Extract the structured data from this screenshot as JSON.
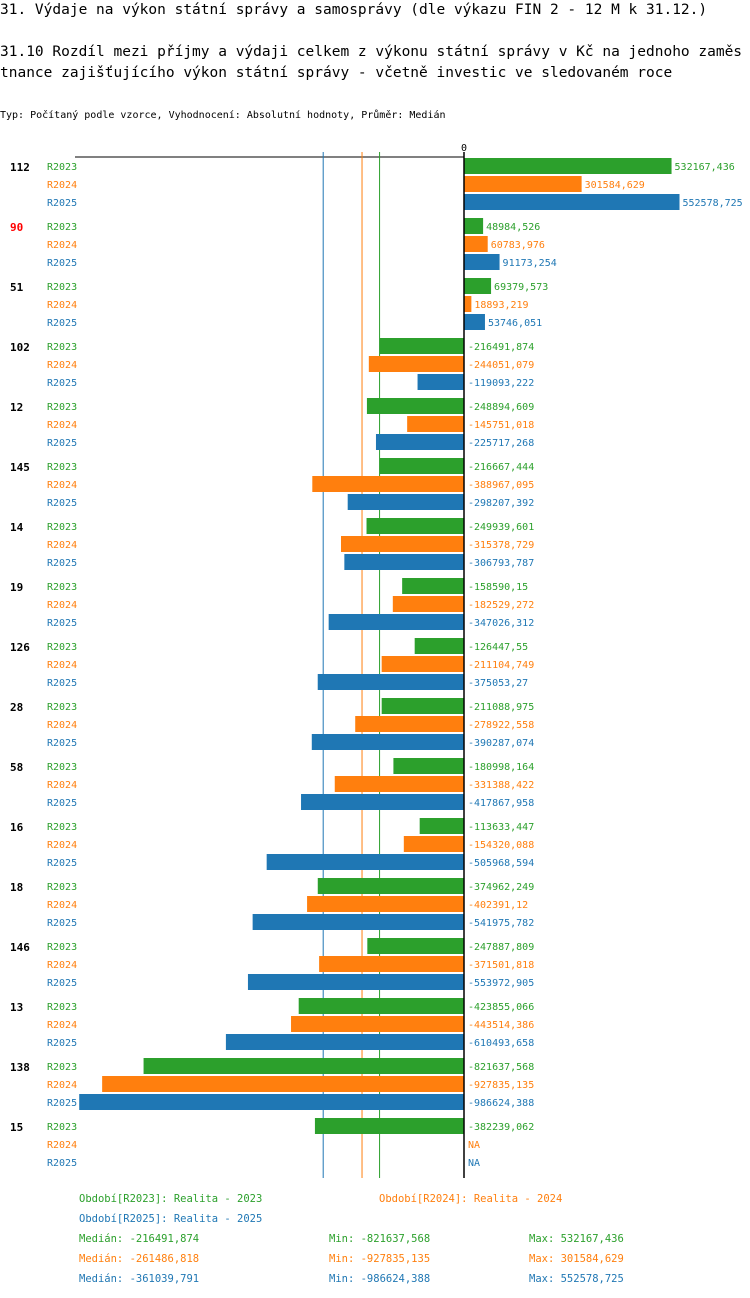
{
  "title": "31. Výdaje na výkon státní správy a samosprávy (dle výkazu FIN 2 - 12 M k 31.12.)",
  "subtitle": "31.10 Rozdíl mezi  příjmy a výdaji celkem z výkonu státní správy v Kč na jednoho zaměstnance zajišťujícího výkon státní správy - včetně investic ve sledovaném roce",
  "info": "Typ: Počítaný podle vzorce, Vyhodnocení: Absolutní hodnoty, Průměr: Medián",
  "chart_data": {
    "type": "bar",
    "orientation": "horizontal",
    "zero_label": "0",
    "series_names": [
      "R2023",
      "R2024",
      "R2025"
    ],
    "colors": [
      "#2ca02c",
      "#ff7f0e",
      "#1f77b4"
    ],
    "highlight_color": "#ff0000",
    "categories": [
      "112",
      "90",
      "51",
      "102",
      "12",
      "145",
      "14",
      "19",
      "126",
      "28",
      "58",
      "16",
      "18",
      "146",
      "13",
      "138",
      "15"
    ],
    "highlighted": [
      "90"
    ],
    "values": [
      [
        "532167,436",
        "301584,629",
        "552578,725"
      ],
      [
        "48984,526",
        "60783,976",
        "91173,254"
      ],
      [
        "69379,573",
        "18893,219",
        "53746,051"
      ],
      [
        "-216491,874",
        "-244051,079",
        "-119093,222"
      ],
      [
        "-248894,609",
        "-145751,018",
        "-225717,268"
      ],
      [
        "-216667,444",
        "-388967,095",
        "-298207,392"
      ],
      [
        "-249939,601",
        "-315378,729",
        "-306793,787"
      ],
      [
        "-158590,15",
        "-182529,272",
        "-347026,312"
      ],
      [
        "-126447,55",
        "-211104,749",
        "-375053,27"
      ],
      [
        "-211088,975",
        "-278922,558",
        "-390287,074"
      ],
      [
        "-180998,164",
        "-331388,422",
        "-417867,958"
      ],
      [
        "-113633,447",
        "-154320,088",
        "-505968,594"
      ],
      [
        "-374962,249",
        "-402391,12",
        "-541975,782"
      ],
      [
        "-247887,809",
        "-371501,818",
        "-553972,905"
      ],
      [
        "-423855,066",
        "-443514,386",
        "-610493,658"
      ],
      [
        "-821637,568",
        "-927835,135",
        "-986624,388"
      ],
      [
        "-382239,062",
        "NA",
        "NA"
      ]
    ],
    "medians": [
      -216491.874,
      -261486.818,
      -361039.791
    ]
  },
  "legend": {
    "periods": [
      "Období[R2023]: Realita - 2023",
      "Období[R2024]: Realita - 2024",
      "Období[R2025]: Realita - 2025"
    ],
    "stats": [
      {
        "median": "Medián: -216491,874",
        "min": "Min: -821637,568",
        "max": "Max: 532167,436"
      },
      {
        "median": "Medián: -261486,818",
        "min": "Min: -927835,135",
        "max": "Max: 301584,629"
      },
      {
        "median": "Medián: -361039,791",
        "min": "Min: -986624,388",
        "max": "Max: 552578,725"
      }
    ]
  }
}
